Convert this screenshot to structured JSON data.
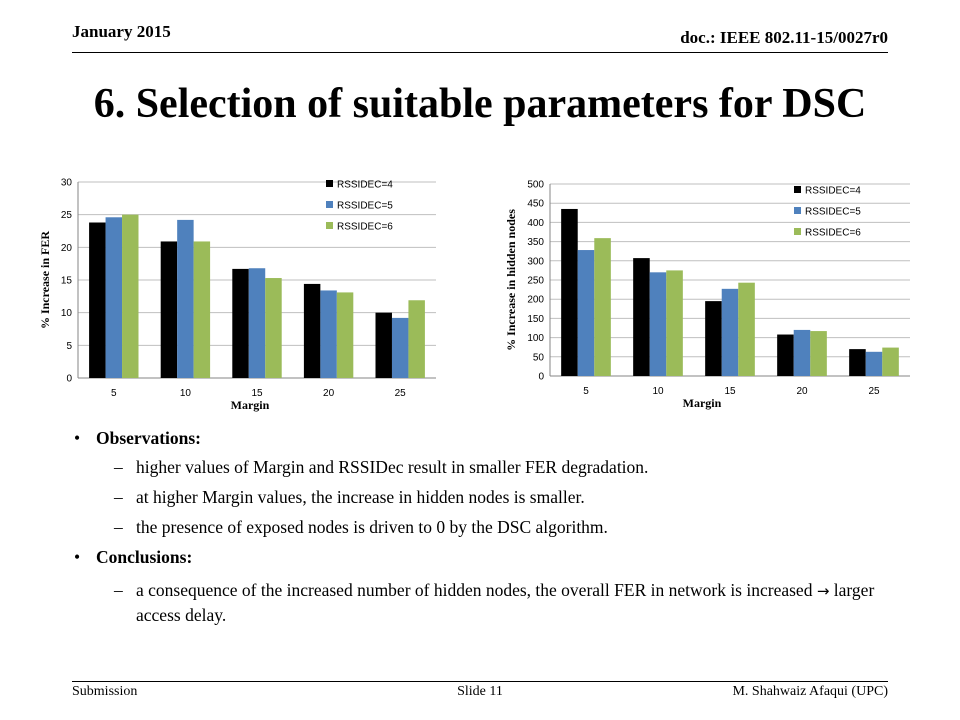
{
  "header": {
    "date": "January 2015",
    "doc": "doc.: IEEE 802.11-15/0027r0"
  },
  "title": "6. Selection of suitable parameters for DSC",
  "chart_data": [
    {
      "type": "bar",
      "categories": [
        "5",
        "10",
        "15",
        "20",
        "25"
      ],
      "series": [
        {
          "name": "RSSIDEC=4",
          "color": "#000000",
          "values": [
            23.8,
            20.9,
            16.7,
            14.4,
            10.0
          ]
        },
        {
          "name": "RSSIDEC=5",
          "color": "#4f81bd",
          "values": [
            24.6,
            24.2,
            16.8,
            13.4,
            9.2
          ]
        },
        {
          "name": "RSSIDEC=6",
          "color": "#9bbb59",
          "values": [
            25.0,
            20.9,
            15.3,
            13.1,
            11.9
          ]
        }
      ],
      "xlabel": "Margin",
      "ylabel": "% Increase in FER",
      "ylim": [
        0,
        30
      ],
      "yticks": [
        0,
        5,
        10,
        15,
        20,
        25,
        30
      ],
      "grid": true,
      "legend": "top-right"
    },
    {
      "type": "bar",
      "categories": [
        "5",
        "10",
        "15",
        "20",
        "25"
      ],
      "series": [
        {
          "name": "RSSIDEC=4",
          "color": "#000000",
          "values": [
            435,
            307,
            195,
            108,
            70
          ]
        },
        {
          "name": "RSSIDEC=5",
          "color": "#4f81bd",
          "values": [
            328,
            270,
            227,
            120,
            63
          ]
        },
        {
          "name": "RSSIDEC=6",
          "color": "#9bbb59",
          "values": [
            359,
            275,
            243,
            117,
            74
          ]
        }
      ],
      "xlabel": "Margin",
      "ylabel": "% Increase in hidden nodes",
      "ylim": [
        0,
        500
      ],
      "yticks": [
        0,
        50,
        100,
        150,
        200,
        250,
        300,
        350,
        400,
        450,
        500
      ],
      "grid": true,
      "legend": "top-right"
    }
  ],
  "body": {
    "observations": {
      "bullet": "•",
      "label": "Observations:",
      "dash": "–",
      "items": [
        "higher values of Margin and RSSIDec result in smaller FER degradation.",
        "at higher Margin values, the increase in hidden nodes is smaller.",
        "the presence of exposed nodes is driven to 0 by the DSC algorithm."
      ]
    },
    "conclusions": {
      "bullet": "•",
      "label": "Conclusions:",
      "dash": "–",
      "item_before_arrow": "a consequence of the increased  number of hidden nodes, the overall FER in network is increased ",
      "arrow": "→",
      "item_after_arrow": " larger access delay."
    }
  },
  "footer": {
    "left": "Submission",
    "center": "Slide 11",
    "right": "M. Shahwaiz Afaqui (UPC)"
  }
}
